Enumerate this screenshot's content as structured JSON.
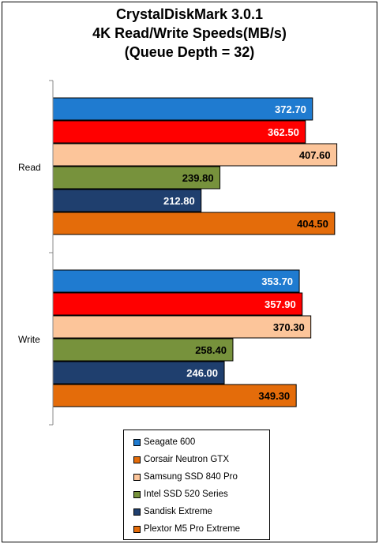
{
  "chart_data": {
    "type": "bar",
    "orientation": "horizontal",
    "title": [
      "CrystalDiskMark 3.0.1",
      "4K Read/Write Speeds(MB/s)",
      "(Queue Depth = 32)"
    ],
    "categories": [
      "Read",
      "Write"
    ],
    "xlim": [
      0,
      450
    ],
    "grid": false,
    "legend_position": "bottom",
    "series": [
      {
        "name": "Seagate 600",
        "color": "#1f7bd0",
        "label_color": "#ffffff",
        "values": [
          372.7,
          353.7
        ]
      },
      {
        "name": "Corsair Neutron GTX",
        "color": "#ff0000",
        "label_color": "#ffffff",
        "values": [
          362.5,
          357.9
        ]
      },
      {
        "name": "Samsung SSD 840 Pro",
        "color": "#fcc59a",
        "label_color": "#000000",
        "values": [
          407.6,
          370.3
        ]
      },
      {
        "name": "Intel SSD 520 Series",
        "color": "#77923c",
        "label_color": "#000000",
        "values": [
          239.8,
          258.4
        ]
      },
      {
        "name": "Sandisk Extreme",
        "color": "#1f3f6e",
        "label_color": "#ffffff",
        "values": [
          212.8,
          246.0
        ]
      },
      {
        "name": "Plextor M5 Pro Extreme",
        "color": "#e46c0a",
        "label_color": "#000000",
        "values": [
          404.5,
          349.3
        ]
      }
    ],
    "value_labels": [
      [
        "372.70",
        "353.70"
      ],
      [
        "362.50",
        "357.90"
      ],
      [
        "407.60",
        "370.30"
      ],
      [
        "239.80",
        "258.40"
      ],
      [
        "212.80",
        "246.00"
      ],
      [
        "404.50",
        "349.30"
      ]
    ],
    "legend_colors": [
      "#1f7bd0",
      "#e46c0a",
      "#fcc59a",
      "#77923c",
      "#1f3f6e",
      "#e46c0a"
    ]
  }
}
